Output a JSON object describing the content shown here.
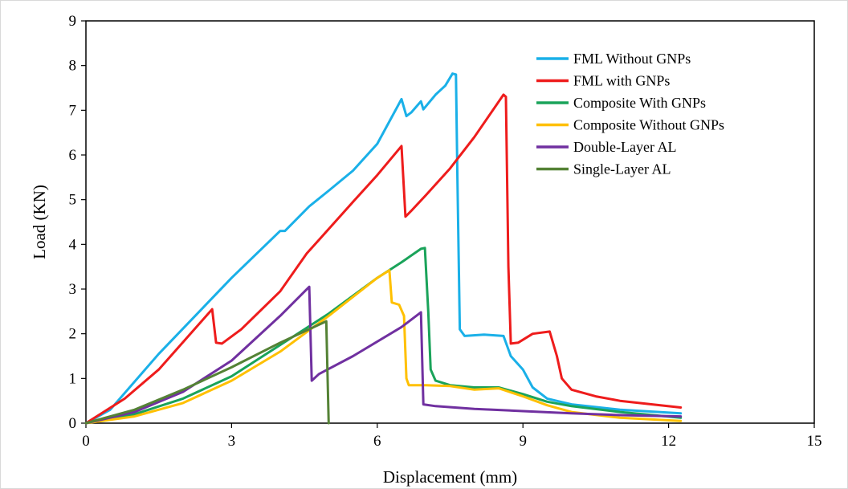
{
  "chart_data": {
    "type": "line",
    "title": "",
    "xlabel": "Displacement (mm)",
    "ylabel": "Load (KN)",
    "xlim": [
      0,
      15
    ],
    "ylim": [
      0,
      9
    ],
    "xticks": [
      0,
      3,
      6,
      9,
      12,
      15
    ],
    "yticks": [
      0,
      1,
      2,
      3,
      4,
      5,
      6,
      7,
      8,
      9
    ],
    "grid": false,
    "legend_position": "top-right",
    "series": [
      {
        "name": "FML Without GNPs",
        "color": "#1ab0e8",
        "points": [
          [
            0,
            0
          ],
          [
            0.5,
            0.3
          ],
          [
            1.5,
            1.55
          ],
          [
            3,
            3.25
          ],
          [
            4.0,
            4.3
          ],
          [
            4.1,
            4.3
          ],
          [
            4.6,
            4.85
          ],
          [
            5.0,
            5.2
          ],
          [
            5.5,
            5.65
          ],
          [
            6.0,
            6.25
          ],
          [
            6.5,
            7.25
          ],
          [
            6.6,
            6.87
          ],
          [
            6.7,
            6.95
          ],
          [
            6.9,
            7.2
          ],
          [
            6.95,
            7.02
          ],
          [
            7.2,
            7.35
          ],
          [
            7.4,
            7.55
          ],
          [
            7.55,
            7.82
          ],
          [
            7.62,
            7.8
          ],
          [
            7.65,
            5.5
          ],
          [
            7.7,
            2.1
          ],
          [
            7.8,
            1.95
          ],
          [
            8.2,
            1.98
          ],
          [
            8.6,
            1.95
          ],
          [
            8.75,
            1.5
          ],
          [
            9.0,
            1.2
          ],
          [
            9.2,
            0.8
          ],
          [
            9.5,
            0.55
          ],
          [
            10.0,
            0.42
          ],
          [
            11.0,
            0.3
          ],
          [
            12.25,
            0.22
          ]
        ]
      },
      {
        "name": "FML with GNPs",
        "color": "#ee1c1c",
        "points": [
          [
            0,
            0
          ],
          [
            0.8,
            0.55
          ],
          [
            1.5,
            1.2
          ],
          [
            2.6,
            2.55
          ],
          [
            2.68,
            1.8
          ],
          [
            2.8,
            1.78
          ],
          [
            3.2,
            2.1
          ],
          [
            4.0,
            2.95
          ],
          [
            4.55,
            3.8
          ],
          [
            4.8,
            4.1
          ],
          [
            5.5,
            4.95
          ],
          [
            6.0,
            5.55
          ],
          [
            6.5,
            6.2
          ],
          [
            6.58,
            4.62
          ],
          [
            6.7,
            4.75
          ],
          [
            7.0,
            5.1
          ],
          [
            7.5,
            5.7
          ],
          [
            8.0,
            6.4
          ],
          [
            8.6,
            7.35
          ],
          [
            8.65,
            7.3
          ],
          [
            8.7,
            3.5
          ],
          [
            8.75,
            1.78
          ],
          [
            8.9,
            1.8
          ],
          [
            9.2,
            2.0
          ],
          [
            9.55,
            2.05
          ],
          [
            9.7,
            1.5
          ],
          [
            9.8,
            1.0
          ],
          [
            10.0,
            0.75
          ],
          [
            10.5,
            0.6
          ],
          [
            11.0,
            0.5
          ],
          [
            12.25,
            0.35
          ]
        ]
      },
      {
        "name": "Composite With GNPs",
        "color": "#1aa35a",
        "points": [
          [
            0,
            0
          ],
          [
            1,
            0.2
          ],
          [
            2,
            0.55
          ],
          [
            3,
            1.05
          ],
          [
            4,
            1.75
          ],
          [
            5,
            2.45
          ],
          [
            6,
            3.25
          ],
          [
            6.5,
            3.6
          ],
          [
            6.9,
            3.9
          ],
          [
            6.98,
            3.92
          ],
          [
            7.05,
            2.5
          ],
          [
            7.1,
            1.2
          ],
          [
            7.2,
            0.95
          ],
          [
            7.5,
            0.85
          ],
          [
            8.0,
            0.8
          ],
          [
            8.5,
            0.8
          ],
          [
            9.0,
            0.65
          ],
          [
            9.5,
            0.48
          ],
          [
            10.0,
            0.38
          ],
          [
            11.0,
            0.25
          ],
          [
            12.25,
            0.12
          ]
        ]
      },
      {
        "name": "Composite Without GNPs",
        "color": "#ffc000",
        "points": [
          [
            0,
            0
          ],
          [
            1,
            0.15
          ],
          [
            2,
            0.45
          ],
          [
            3,
            0.95
          ],
          [
            4,
            1.6
          ],
          [
            5,
            2.4
          ],
          [
            6,
            3.25
          ],
          [
            6.25,
            3.42
          ],
          [
            6.3,
            2.7
          ],
          [
            6.45,
            2.65
          ],
          [
            6.55,
            2.4
          ],
          [
            6.6,
            1.0
          ],
          [
            6.65,
            0.85
          ],
          [
            7.0,
            0.85
          ],
          [
            7.5,
            0.83
          ],
          [
            8.0,
            0.75
          ],
          [
            8.5,
            0.78
          ],
          [
            9.0,
            0.6
          ],
          [
            9.5,
            0.4
          ],
          [
            10.0,
            0.25
          ],
          [
            11.0,
            0.12
          ],
          [
            12.25,
            0.05
          ]
        ]
      },
      {
        "name": "Double-Layer AL",
        "color": "#7030a0",
        "points": [
          [
            0,
            0
          ],
          [
            1,
            0.25
          ],
          [
            2,
            0.7
          ],
          [
            3,
            1.4
          ],
          [
            4,
            2.4
          ],
          [
            4.6,
            3.05
          ],
          [
            4.65,
            0.95
          ],
          [
            4.8,
            1.1
          ],
          [
            5.5,
            1.5
          ],
          [
            6.5,
            2.15
          ],
          [
            6.9,
            2.48
          ],
          [
            6.95,
            0.42
          ],
          [
            7.2,
            0.38
          ],
          [
            8.0,
            0.32
          ],
          [
            9.0,
            0.27
          ],
          [
            10.0,
            0.22
          ],
          [
            11.0,
            0.18
          ],
          [
            12.25,
            0.15
          ]
        ]
      },
      {
        "name": "Single-Layer AL",
        "color": "#548235",
        "points": [
          [
            0,
            0
          ],
          [
            1,
            0.3
          ],
          [
            2,
            0.75
          ],
          [
            3,
            1.25
          ],
          [
            4,
            1.8
          ],
          [
            4.95,
            2.28
          ],
          [
            5.0,
            0.0
          ]
        ]
      }
    ]
  }
}
